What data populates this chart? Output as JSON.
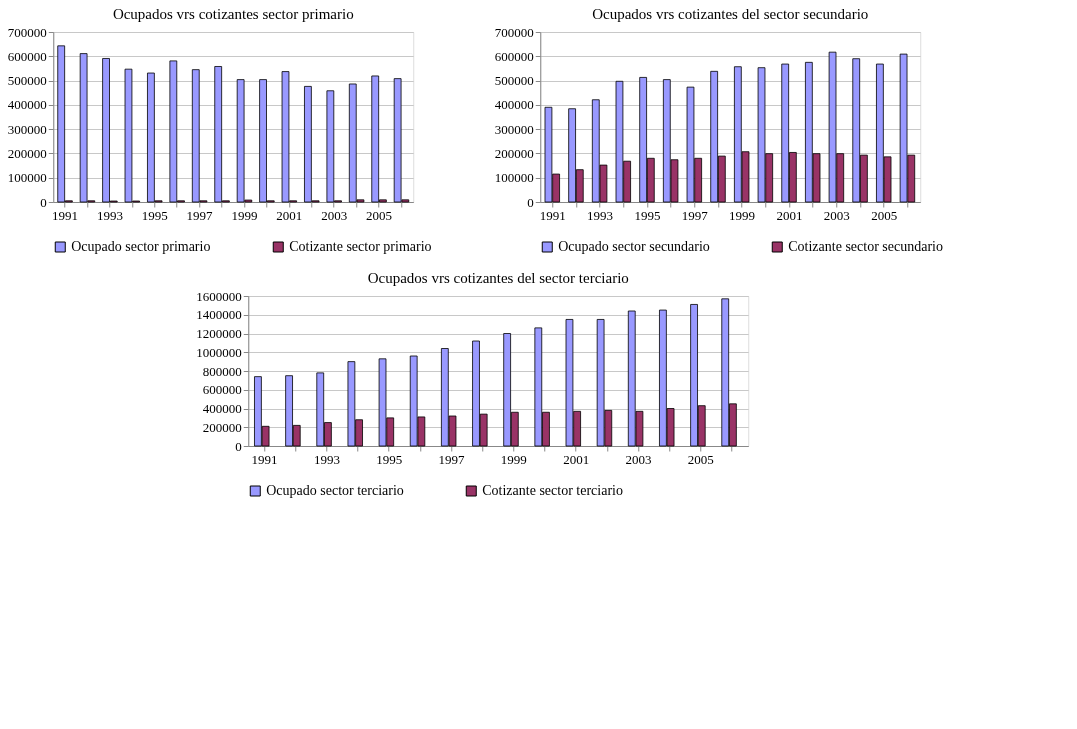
{
  "chart_data": [
    {
      "type": "bar",
      "title": "Ocupados vrs cotizantes sector primario",
      "categories": [
        "1991",
        null,
        "1993",
        null,
        "1995",
        null,
        "1997",
        null,
        "1999",
        null,
        "2001",
        null,
        "2003",
        null,
        "2005",
        null
      ],
      "series": [
        {
          "name": "Ocupado sector primario",
          "color": "#9999ff",
          "values": [
            643000,
            611000,
            591000,
            547000,
            531000,
            581000,
            545000,
            558000,
            504000,
            504000,
            537000,
            476000,
            458000,
            486000,
            519000,
            508000
          ]
        },
        {
          "name": "Cotizante sector primario",
          "color": "#993366",
          "values": [
            5000,
            5000,
            4000,
            4000,
            5000,
            5000,
            5000,
            5000,
            8000,
            5000,
            5000,
            5000,
            5000,
            9000,
            9000,
            9000
          ]
        }
      ],
      "ylim": [
        0,
        700000
      ],
      "yticks": [
        0,
        100000,
        200000,
        300000,
        400000,
        500000,
        600000,
        700000
      ],
      "grid": "y",
      "legend": "bottom"
    },
    {
      "type": "bar",
      "title": "Ocupados vrs cotizantes del sector secundario",
      "categories": [
        "1991",
        null,
        "1993",
        null,
        "1995",
        null,
        "1997",
        null,
        "1999",
        null,
        "2001",
        null,
        "2003",
        null,
        "2005",
        null
      ],
      "series": [
        {
          "name": "Ocupado sector secundario",
          "color": "#9999ff",
          "values": [
            390000,
            384000,
            421000,
            497000,
            513000,
            504000,
            473000,
            538000,
            557000,
            553000,
            568000,
            575000,
            617000,
            590000,
            568000,
            609000
          ]
        },
        {
          "name": "Cotizante sector secundario",
          "color": "#993366",
          "values": [
            115000,
            133000,
            152000,
            168000,
            180000,
            174000,
            180000,
            189000,
            207000,
            199000,
            204000,
            199000,
            199000,
            193000,
            186000,
            193000
          ]
        }
      ],
      "ylim": [
        0,
        700000
      ],
      "yticks": [
        0,
        100000,
        200000,
        300000,
        400000,
        500000,
        600000,
        700000
      ],
      "grid": "y",
      "legend": "bottom"
    },
    {
      "type": "bar",
      "title": "Ocupados vrs cotizantes del sector terciario",
      "categories": [
        "1991",
        null,
        "1993",
        null,
        "1995",
        null,
        "1997",
        null,
        "1999",
        null,
        "2001",
        null,
        "2003",
        null,
        "2005",
        null
      ],
      "series": [
        {
          "name": "Ocupado sector terciario",
          "color": "#9999ff",
          "values": [
            740000,
            750000,
            780000,
            900000,
            930000,
            960000,
            1040000,
            1120000,
            1200000,
            1260000,
            1350000,
            1350000,
            1440000,
            1450000,
            1510000,
            1570000
          ]
        },
        {
          "name": "Cotizante sector terciario",
          "color": "#993366",
          "values": [
            210000,
            220000,
            250000,
            280000,
            300000,
            310000,
            320000,
            340000,
            360000,
            360000,
            370000,
            380000,
            370000,
            400000,
            430000,
            450000
          ]
        }
      ],
      "ylim": [
        0,
        1600000
      ],
      "yticks": [
        0,
        200000,
        400000,
        600000,
        800000,
        1000000,
        1200000,
        1400000,
        1600000
      ],
      "grid": "y",
      "legend": "bottom"
    }
  ]
}
